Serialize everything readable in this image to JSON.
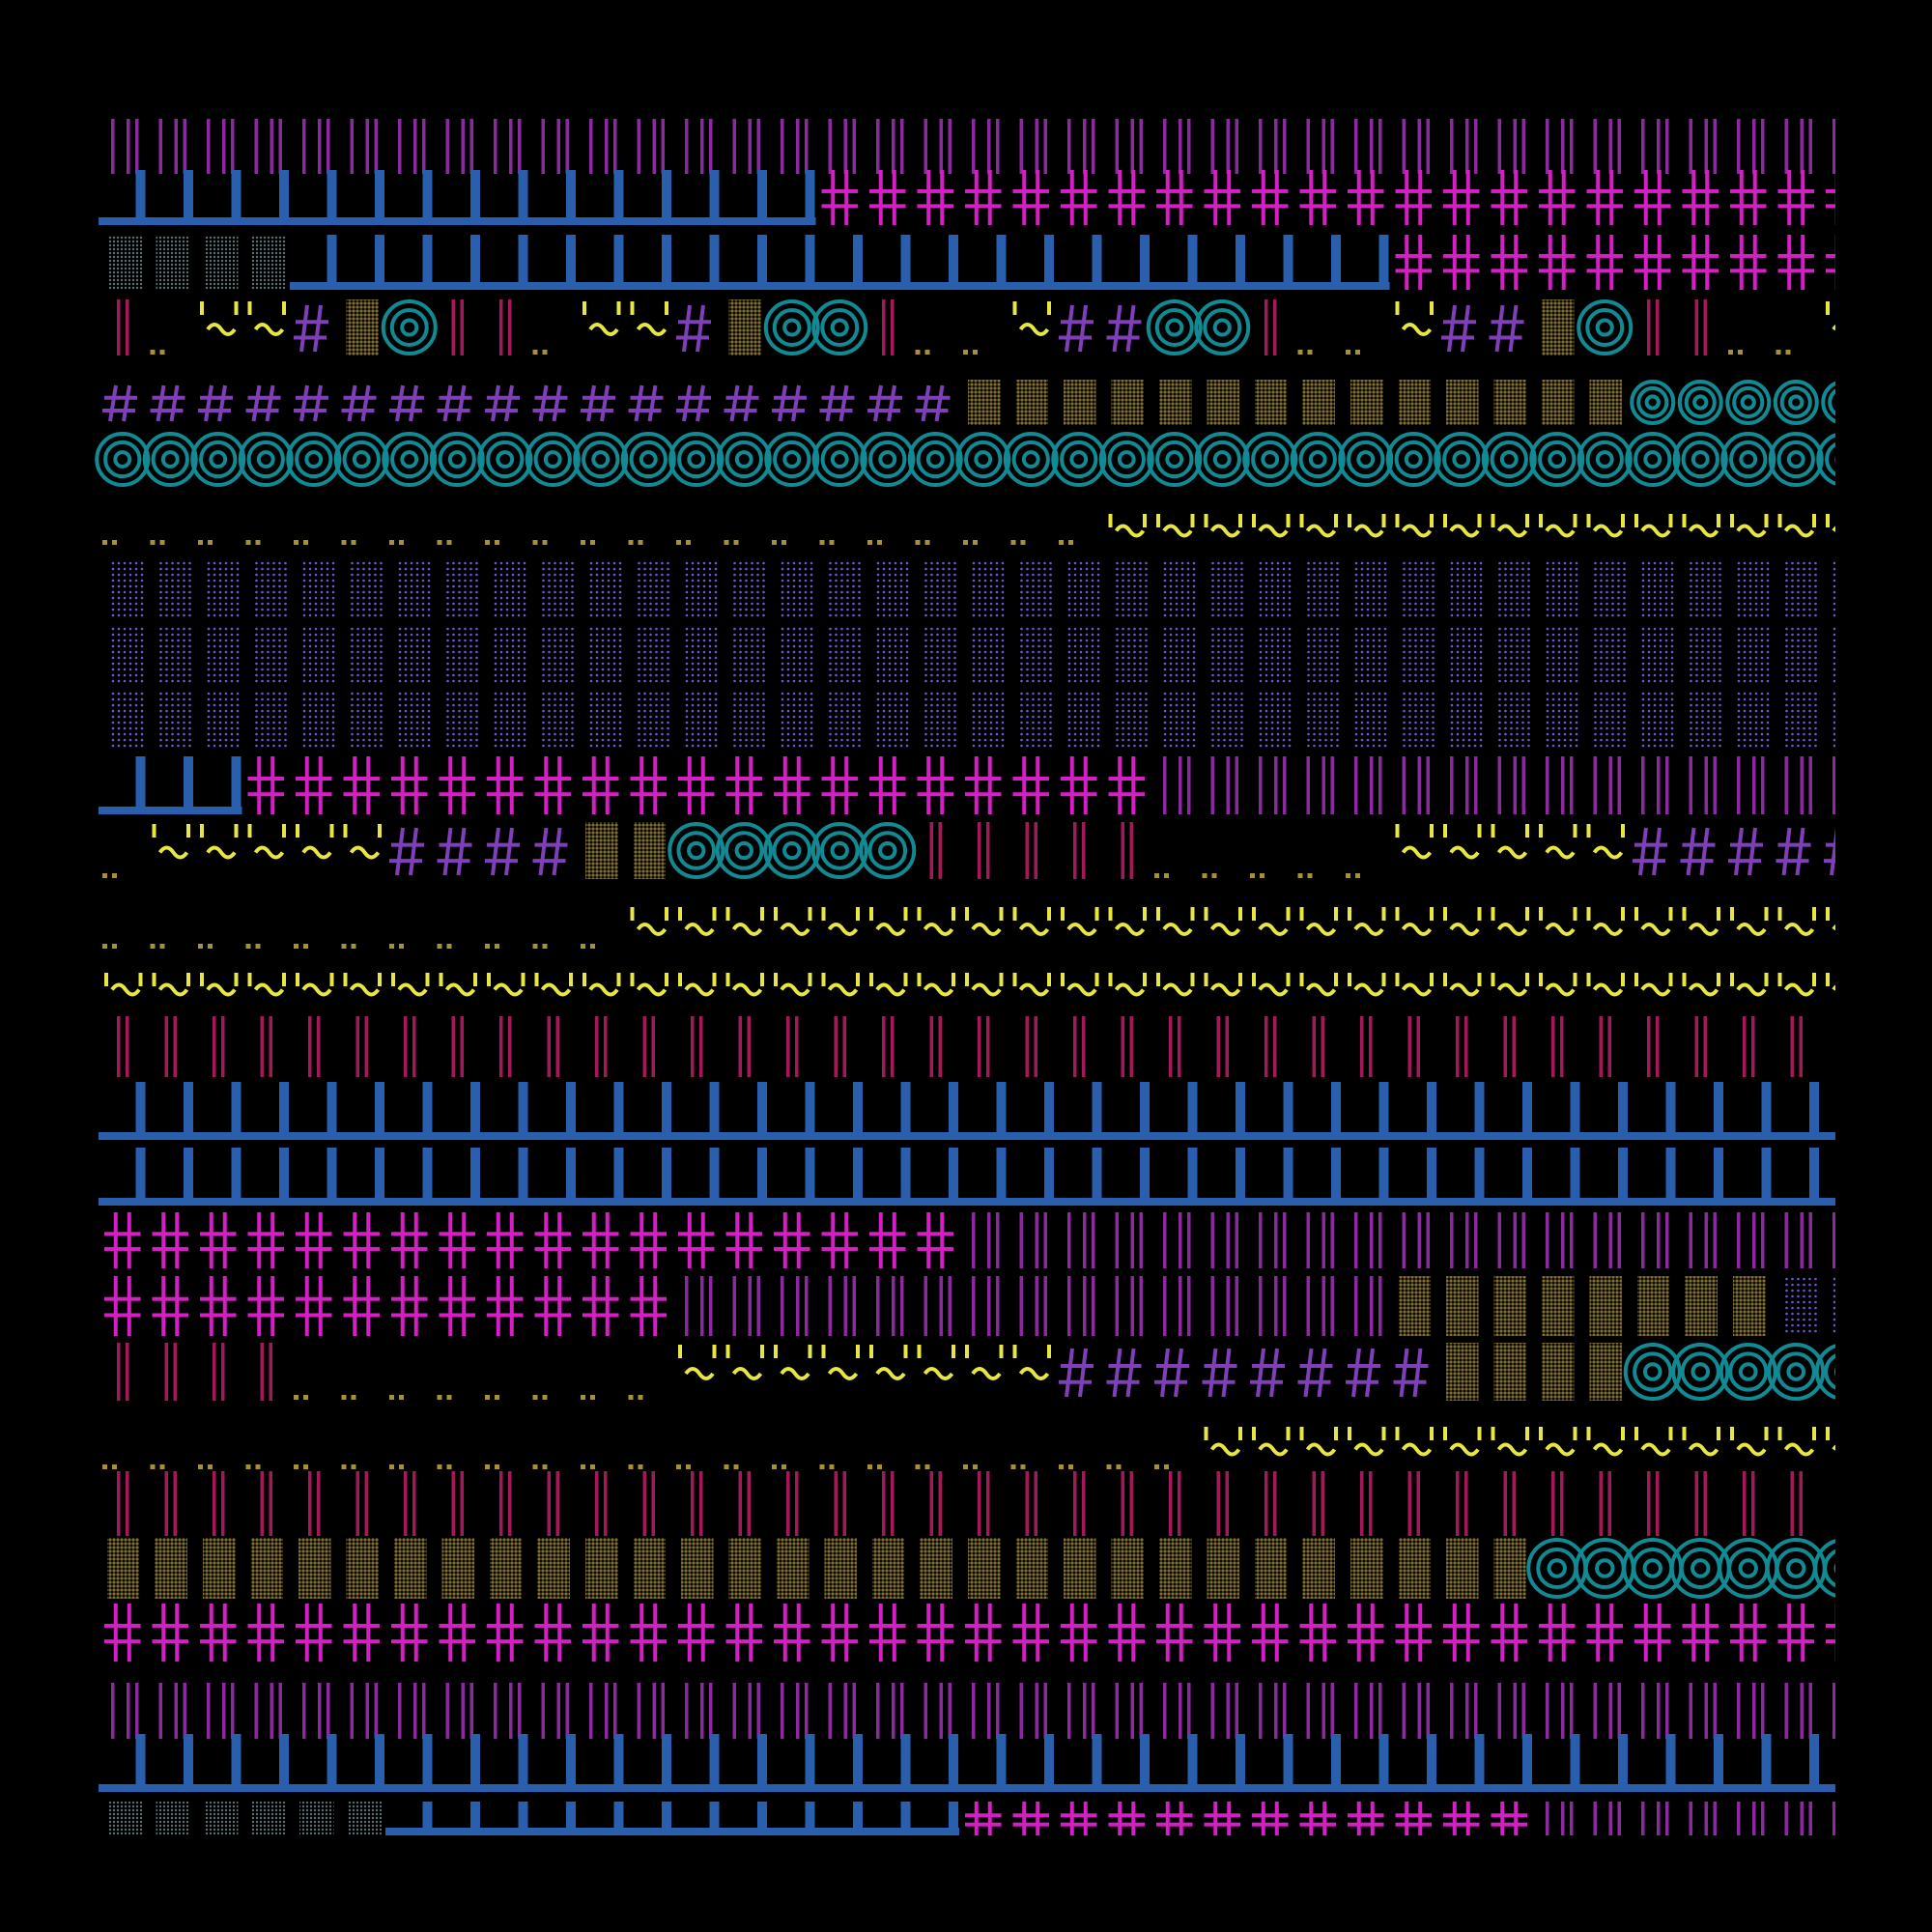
{
  "colors": {
    "background": "#000000",
    "purple": "#8a2a9e",
    "violet": "#7f3fb8",
    "blue": "#2a5fae",
    "magenta": "#d51ec4",
    "crimson": "#a4195a",
    "olive": "#82712a",
    "teal": "#118a93",
    "yellow": "#e8e640",
    "gold": "#a59234",
    "lilac": "#6b5acd",
    "gray": "#5e7074"
  },
  "glyphs": [
    {
      "name": "purple-bar-glyph",
      "color": "purple"
    },
    {
      "name": "blue-bracket-glyph",
      "color": "blue"
    },
    {
      "name": "magenta-cross-glyph",
      "color": "magenta"
    },
    {
      "name": "gray-stipple-glyph",
      "color": "gray"
    },
    {
      "name": "crimson-double-bar-glyph",
      "color": "crimson"
    },
    {
      "name": "gold-dots-glyph",
      "color": "gold"
    },
    {
      "name": "yellow-wave-glyph",
      "color": "yellow"
    },
    {
      "name": "violet-hash-glyph",
      "color": "violet"
    },
    {
      "name": "olive-block-glyph",
      "color": "olive"
    },
    {
      "name": "teal-target-glyph",
      "color": "teal"
    },
    {
      "name": "lilac-dot-grid-glyph",
      "color": "lilac"
    }
  ]
}
